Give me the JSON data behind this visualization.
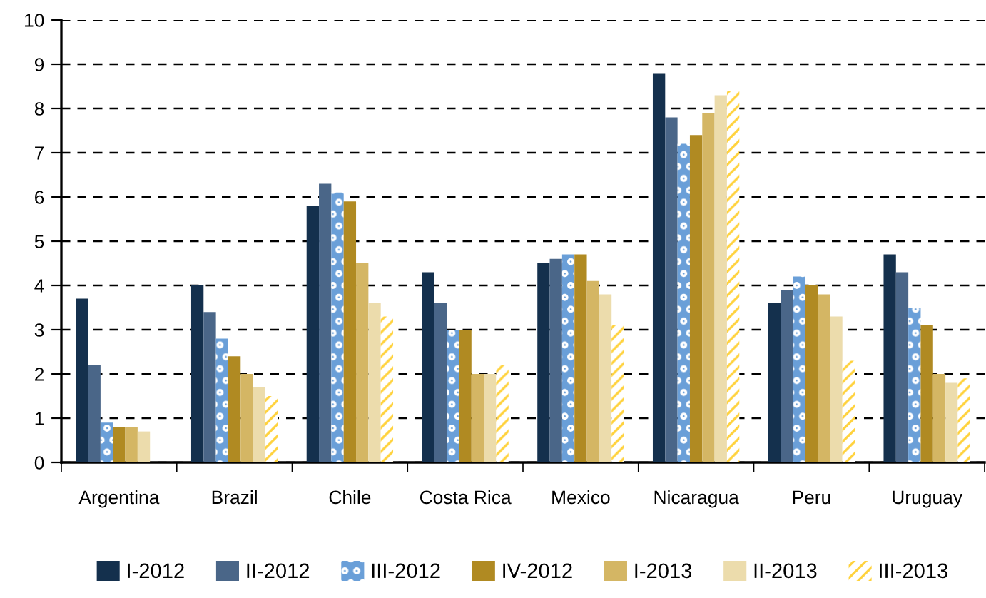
{
  "chart_data": {
    "type": "bar",
    "categories": [
      "Argentina",
      "Brazil",
      "Chile",
      "Costa Rica",
      "Mexico",
      "Nicaragua",
      "Peru",
      "Uruguay"
    ],
    "series": [
      {
        "name": "I-2012",
        "color": "#14304d",
        "values": [
          3.7,
          4.0,
          5.8,
          4.3,
          4.5,
          8.8,
          3.6,
          4.7
        ]
      },
      {
        "name": "II-2012",
        "color": "#4a6688",
        "values": [
          2.2,
          3.4,
          6.3,
          3.6,
          4.6,
          7.8,
          3.9,
          4.3
        ]
      },
      {
        "name": "III-2012",
        "color": "#6a9fd8",
        "values": [
          0.9,
          2.8,
          6.1,
          3.0,
          4.7,
          7.2,
          4.2,
          3.5
        ]
      },
      {
        "name": "IV-2012",
        "color": "#b08a22",
        "values": [
          0.8,
          2.4,
          5.9,
          3.0,
          4.7,
          7.4,
          4.0,
          3.1
        ]
      },
      {
        "name": "I-2013",
        "color": "#d4b664",
        "values": [
          0.8,
          2.0,
          4.5,
          2.0,
          4.1,
          7.9,
          3.8,
          2.0
        ]
      },
      {
        "name": "II-2013",
        "color": "#ecdcac",
        "values": [
          0.7,
          1.7,
          3.6,
          2.0,
          3.8,
          8.3,
          3.3,
          1.8
        ]
      },
      {
        "name": "III-2013",
        "color": "#ffd23c",
        "values": [
          null,
          1.5,
          3.3,
          2.2,
          3.1,
          8.4,
          2.3,
          1.9
        ]
      }
    ],
    "ylim": [
      0,
      10
    ],
    "yticks": [
      0,
      1,
      2,
      3,
      4,
      5,
      6,
      7,
      8,
      9,
      10
    ],
    "grid": "y",
    "legend": "bottom"
  }
}
